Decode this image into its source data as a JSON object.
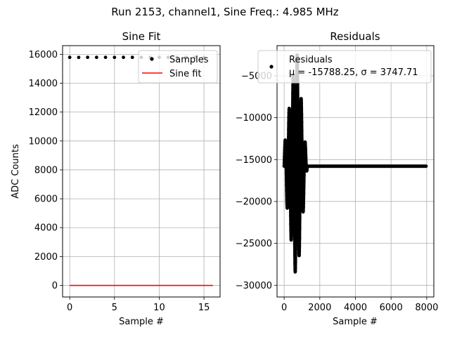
{
  "suptitle": "Run 2153, channel1, Sine Freq.: 4.985 MHz",
  "colors": {
    "samples": "#000000",
    "fit": "#ff0000",
    "grid": "#b0b0b0"
  },
  "chart_data": [
    {
      "type": "scatter",
      "title": "Sine Fit",
      "xlabel": "Sample #",
      "ylabel": "ADC Counts",
      "xlim": [
        -0.8,
        16.8
      ],
      "ylim": [
        -800,
        16600
      ],
      "xticks": [
        0,
        5,
        10,
        15
      ],
      "yticks": [
        0,
        2000,
        4000,
        6000,
        8000,
        10000,
        12000,
        14000,
        16000
      ],
      "grid": true,
      "legend_position": "top-right",
      "series": [
        {
          "name": "Samples",
          "kind": "points",
          "x": [
            0,
            1,
            2,
            3,
            4,
            5,
            6,
            7,
            8,
            9,
            10,
            11,
            12,
            13,
            14,
            15
          ],
          "y": [
            15790,
            15785,
            15792,
            15788,
            15791,
            15786,
            15789,
            15790,
            15787,
            15791,
            15788,
            15790,
            15786,
            15789,
            15790,
            15788
          ]
        },
        {
          "name": "Sine fit",
          "kind": "line",
          "x": [
            0,
            16
          ],
          "y": [
            0,
            0
          ]
        }
      ]
    },
    {
      "type": "scatter",
      "title": "Residuals",
      "xlabel": "Sample #",
      "ylabel": "",
      "xlim": [
        -400,
        8400
      ],
      "ylim": [
        -31400,
        -1400
      ],
      "xticks": [
        0,
        2000,
        4000,
        6000,
        8000
      ],
      "yticks": [
        -30000,
        -25000,
        -20000,
        -15000,
        -10000,
        -5000
      ],
      "yticks_labels": [
        "−30000",
        "−25000",
        "−20000",
        "−15000",
        "−10000",
        "−5000"
      ],
      "grid": true,
      "legend_position": "top-right",
      "legend_line1": "Residuals",
      "legend_line2": "μ = -15788.25, σ = 3747.71",
      "series": [
        {
          "name": "Residuals",
          "kind": "points",
          "center": -15788,
          "burst_start": 0,
          "burst_peak": 700,
          "burst_end": 1300,
          "amplitude_max": 14000,
          "flat_end": 8000
        }
      ]
    }
  ]
}
